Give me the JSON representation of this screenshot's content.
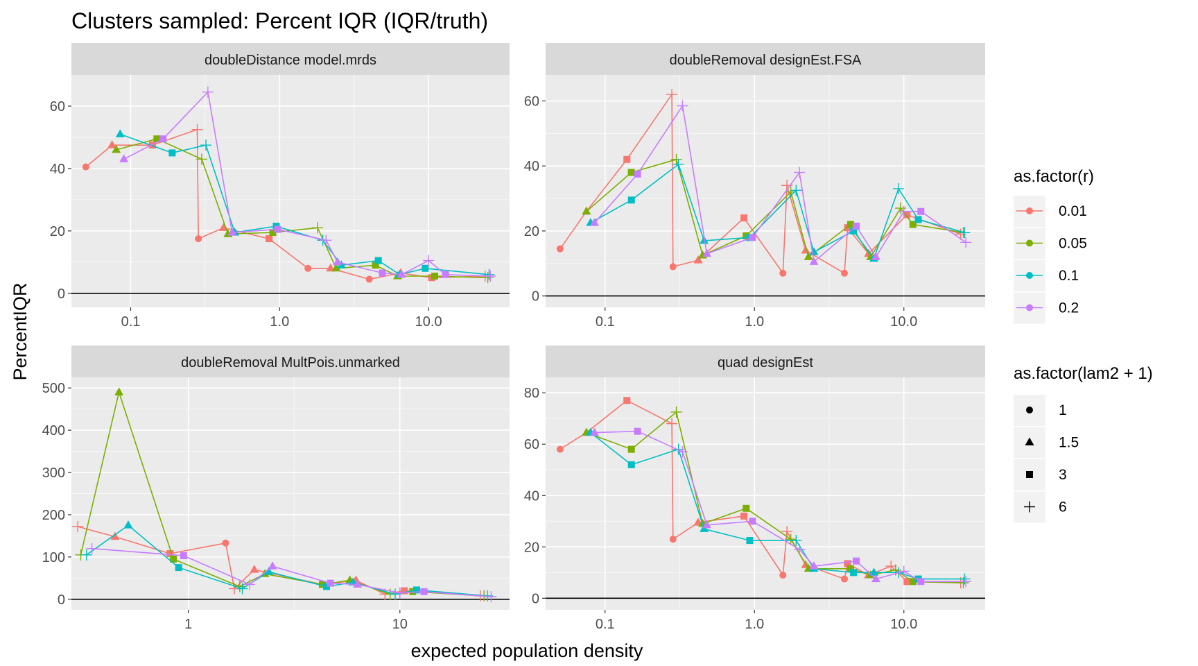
{
  "title": "Clusters sampled: Percent IQR (IQR/truth)",
  "xlabel": "expected population density",
  "ylabel": "PercentIQR",
  "legend_color": {
    "title": "as.factor(r)",
    "levels": [
      "0.01",
      "0.05",
      "0.1",
      "0.2"
    ],
    "colors": [
      "#F8766D",
      "#7CAE00",
      "#00BFC4",
      "#C77CFF"
    ]
  },
  "legend_shape": {
    "title": "as.factor(lam2 + 1)",
    "levels": [
      "1",
      "1.5",
      "3",
      "6"
    ],
    "shapes": [
      "circle",
      "triangle",
      "square",
      "plus"
    ]
  },
  "chart_data": [
    {
      "type": "line",
      "facet": "doubleDistance model.mrds",
      "xscale": "log10",
      "xlim": [
        0.04,
        35
      ],
      "ylim": [
        -4.5,
        70
      ],
      "xticks": [
        0.1,
        1,
        10
      ],
      "xtick_labels": [
        "0.1",
        "1.0",
        "10.0"
      ],
      "yticks": [
        0,
        20,
        40,
        60
      ],
      "ytick_labels": [
        "0",
        "20",
        "40",
        "60"
      ],
      "series": [
        {
          "name": "0.01",
          "x": [
            0.05,
            0.075,
            0.14,
            0.28,
            0.285,
            0.42,
            0.85,
            1.55,
            2.2,
            4.0,
            6.5,
            10.5,
            24
          ],
          "y": [
            40.5,
            47.5,
            47.5,
            52.5,
            17.5,
            21,
            17.5,
            8,
            8,
            4.5,
            6.5,
            5,
            5.5
          ],
          "shape": [
            "circle",
            "triangle",
            "square",
            "plus",
            "circle",
            "triangle",
            "square",
            "circle",
            "triangle",
            "circle",
            "triangle",
            "square",
            "plus"
          ]
        },
        {
          "name": "0.05",
          "x": [
            0.08,
            0.15,
            0.3,
            0.45,
            0.9,
            1.8,
            2.4,
            4.4,
            6.2,
            11,
            25
          ],
          "y": [
            46,
            49.5,
            43,
            19,
            19.5,
            21,
            8,
            9,
            5.5,
            5.5,
            5
          ],
          "shape": [
            "triangle",
            "square",
            "plus",
            "triangle",
            "square",
            "plus",
            "triangle",
            "square",
            "triangle",
            "square",
            "plus"
          ]
        },
        {
          "name": "0.1",
          "x": [
            0.085,
            0.19,
            0.32,
            0.5,
            0.95,
            1.95,
            2.6,
            4.6,
            6.4,
            9.5,
            25.5
          ],
          "y": [
            51,
            45,
            47.5,
            19.5,
            21.5,
            17,
            9,
            10.5,
            6,
            8,
            6
          ],
          "shape": [
            "triangle",
            "square",
            "plus",
            "triangle",
            "square",
            "plus",
            "triangle",
            "square",
            "triangle",
            "square",
            "plus"
          ]
        },
        {
          "name": "0.2",
          "x": [
            0.09,
            0.165,
            0.33,
            0.48,
            0.97,
            2.05,
            2.45,
            4.9,
            6.6,
            10,
            13,
            26
          ],
          "y": [
            43,
            49.5,
            64.5,
            19.5,
            20.5,
            17,
            10,
            6.5,
            6,
            10.5,
            6,
            5.5
          ],
          "shape": [
            "triangle",
            "square",
            "plus",
            "triangle",
            "square",
            "plus",
            "triangle",
            "square",
            "triangle",
            "plus",
            "square",
            "plus"
          ]
        }
      ]
    },
    {
      "type": "line",
      "facet": "doubleRemoval designEst.FSA",
      "xscale": "log10",
      "xlim": [
        0.04,
        35
      ],
      "ylim": [
        -3.5,
        68
      ],
      "xticks": [
        0.1,
        1,
        10
      ],
      "xtick_labels": [
        "0.1",
        "1.0",
        "10.0"
      ],
      "yticks": [
        0,
        20,
        40,
        60
      ],
      "ytick_labels": [
        "0",
        "20",
        "40",
        "60"
      ],
      "series": [
        {
          "name": "0.01",
          "x": [
            0.05,
            0.075,
            0.14,
            0.28,
            0.285,
            0.42,
            0.85,
            1.55,
            1.65,
            2.2,
            4.0,
            4.2,
            5.8,
            10.5,
            24
          ],
          "y": [
            14.5,
            26,
            42,
            62,
            9,
            11,
            24,
            7,
            34,
            14,
            7,
            21,
            13,
            25,
            19
          ],
          "shape": [
            "circle",
            "triangle",
            "square",
            "plus",
            "circle",
            "triangle",
            "square",
            "circle",
            "plus",
            "triangle",
            "circle",
            "square",
            "triangle",
            "square",
            "plus"
          ]
        },
        {
          "name": "0.05",
          "x": [
            0.075,
            0.15,
            0.3,
            0.45,
            0.88,
            1.75,
            2.3,
            4.4,
            6.0,
            9.5,
            11.5,
            25
          ],
          "y": [
            26,
            38,
            42,
            12.5,
            18.5,
            32,
            12,
            22,
            12,
            27,
            22,
            19.5
          ],
          "shape": [
            "triangle",
            "square",
            "plus",
            "triangle",
            "square",
            "plus",
            "triangle",
            "square",
            "triangle",
            "plus",
            "square",
            "plus"
          ]
        },
        {
          "name": "0.1",
          "x": [
            0.08,
            0.15,
            0.31,
            0.46,
            0.93,
            1.9,
            2.5,
            4.6,
            6.3,
            9.2,
            12.5,
            25.5
          ],
          "y": [
            22.5,
            29.5,
            40.5,
            17,
            18,
            32.5,
            13.5,
            20,
            11.5,
            33,
            23.5,
            19.5
          ],
          "shape": [
            "triangle",
            "square",
            "plus",
            "triangle",
            "square",
            "plus",
            "triangle",
            "square",
            "triangle",
            "plus",
            "square",
            "plus"
          ]
        },
        {
          "name": "0.2",
          "x": [
            0.085,
            0.165,
            0.33,
            0.48,
            0.97,
            2.0,
            2.5,
            4.8,
            6.5,
            10,
            13,
            26
          ],
          "y": [
            22.5,
            37.5,
            58.5,
            13,
            18,
            38,
            10.5,
            21.5,
            12,
            26,
            26,
            16.5
          ],
          "shape": [
            "triangle",
            "square",
            "plus",
            "triangle",
            "square",
            "plus",
            "triangle",
            "square",
            "triangle",
            "plus",
            "square",
            "plus"
          ]
        }
      ]
    },
    {
      "type": "line",
      "facet": "doubleRemoval MultPois.unmarked",
      "xscale": "log10",
      "xlim": [
        0.28,
        33
      ],
      "ylim": [
        -25,
        525
      ],
      "xticks": [
        1,
        10
      ],
      "xtick_labels": [
        "1",
        "10"
      ],
      "yticks": [
        0,
        100,
        200,
        300,
        400,
        500
      ],
      "ytick_labels": [
        "0",
        "100",
        "200",
        "300",
        "400",
        "500"
      ],
      "series": [
        {
          "name": "0.01",
          "x": [
            0.3,
            0.45,
            0.82,
            1.5,
            1.65,
            2.05,
            4.3,
            6.2,
            8.5,
            10.5,
            24
          ],
          "y": [
            172,
            148,
            108,
            133,
            25,
            70,
            35,
            45,
            12,
            20,
            8
          ],
          "shape": [
            "plus",
            "triangle",
            "square",
            "circle",
            "plus",
            "triangle",
            "square",
            "triangle",
            "plus",
            "square",
            "plus"
          ]
        },
        {
          "name": "0.05",
          "x": [
            0.31,
            0.47,
            0.85,
            1.75,
            2.3,
            4.3,
            5.8,
            9,
            11.5,
            25
          ],
          "y": [
            105,
            490,
            95,
            30,
            60,
            35,
            45,
            12,
            18,
            8
          ],
          "shape": [
            "plus",
            "triangle",
            "square",
            "plus",
            "triangle",
            "square",
            "triangle",
            "plus",
            "square",
            "plus"
          ]
        },
        {
          "name": "0.1",
          "x": [
            0.33,
            0.52,
            0.9,
            1.8,
            2.4,
            4.5,
            6.0,
            9.5,
            12,
            26
          ],
          "y": [
            105,
            175,
            75,
            25,
            65,
            30,
            40,
            12,
            22,
            8
          ],
          "shape": [
            "plus",
            "triangle",
            "square",
            "plus",
            "triangle",
            "square",
            "triangle",
            "plus",
            "square",
            "plus"
          ]
        },
        {
          "name": "0.2",
          "x": [
            0.35,
            0.95,
            1.95,
            2.5,
            4.7,
            6.3,
            10,
            13,
            27
          ],
          "y": [
            120,
            103,
            35,
            78,
            38,
            35,
            15,
            18,
            6
          ],
          "shape": [
            "plus",
            "square",
            "plus",
            "triangle",
            "square",
            "triangle",
            "plus",
            "square",
            "plus"
          ]
        }
      ]
    },
    {
      "type": "line",
      "facet": "quad designEst",
      "xscale": "log10",
      "xlim": [
        0.04,
        35
      ],
      "ylim": [
        -4.5,
        86
      ],
      "xticks": [
        0.1,
        1,
        10
      ],
      "xtick_labels": [
        "0.1",
        "1.0",
        "10.0"
      ],
      "yticks": [
        0,
        20,
        40,
        60,
        80
      ],
      "ytick_labels": [
        "0",
        "20",
        "40",
        "60",
        "80"
      ],
      "series": [
        {
          "name": "0.01",
          "x": [
            0.05,
            0.075,
            0.14,
            0.28,
            0.285,
            0.42,
            0.85,
            1.55,
            1.65,
            2.2,
            4.0,
            4.2,
            5.8,
            8.2,
            10.5,
            24
          ],
          "y": [
            58,
            64.5,
            77,
            68,
            23,
            29.5,
            32,
            9,
            26,
            13,
            7.5,
            13.5,
            9,
            12.5,
            6.5,
            6
          ],
          "shape": [
            "circle",
            "triangle",
            "square",
            "plus",
            "circle",
            "triangle",
            "square",
            "circle",
            "plus",
            "triangle",
            "circle",
            "square",
            "triangle",
            "plus",
            "square",
            "plus"
          ]
        },
        {
          "name": "0.05",
          "x": [
            0.075,
            0.15,
            0.3,
            0.45,
            0.88,
            1.75,
            2.3,
            4.4,
            6.0,
            8.8,
            11.5,
            25
          ],
          "y": [
            64.5,
            58,
            72.5,
            29,
            35,
            23,
            11.5,
            11.5,
            9,
            11,
            6.5,
            6
          ],
          "shape": [
            "triangle",
            "square",
            "plus",
            "triangle",
            "square",
            "plus",
            "triangle",
            "square",
            "triangle",
            "plus",
            "square",
            "plus"
          ]
        },
        {
          "name": "0.1",
          "x": [
            0.08,
            0.15,
            0.31,
            0.46,
            0.93,
            1.9,
            2.5,
            4.6,
            6.3,
            9.2,
            12.5,
            25.5
          ],
          "y": [
            64.5,
            52,
            58,
            27,
            22.5,
            22.5,
            11.5,
            10,
            10,
            10,
            7.5,
            7.5
          ],
          "shape": [
            "triangle",
            "square",
            "plus",
            "triangle",
            "square",
            "plus",
            "triangle",
            "square",
            "triangle",
            "plus",
            "square",
            "plus"
          ]
        },
        {
          "name": "0.2",
          "x": [
            0.085,
            0.165,
            0.33,
            0.48,
            0.97,
            2.0,
            2.5,
            4.8,
            6.5,
            10,
            13,
            26
          ],
          "y": [
            64.5,
            65,
            57,
            28.5,
            30,
            19,
            12.5,
            14.5,
            7.5,
            10.5,
            6.5,
            6.5
          ],
          "shape": [
            "triangle",
            "square",
            "plus",
            "triangle",
            "square",
            "plus",
            "triangle",
            "square",
            "triangle",
            "plus",
            "square",
            "plus"
          ]
        }
      ]
    }
  ]
}
